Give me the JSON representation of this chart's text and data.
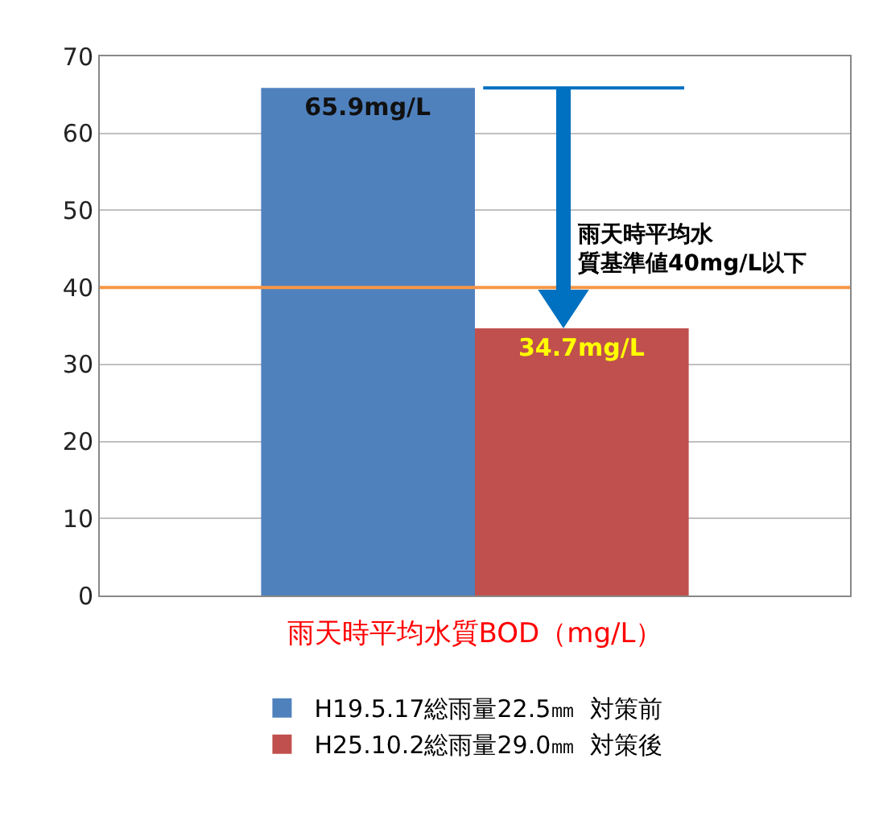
{
  "chart_data": {
    "type": "bar",
    "categories": [
      null
    ],
    "series": [
      {
        "name": "H19.5.17総雨量22.5㎜  対策前",
        "color": "#4f81bd",
        "values": [
          65.9
        ],
        "value_labels": [
          "65.9mg/L"
        ]
      },
      {
        "name": "H25.10.2総雨量29.0㎜  対策後",
        "color": "#c0504d",
        "values": [
          34.7
        ],
        "value_labels": [
          "34.7mg/L"
        ]
      }
    ],
    "xlabel": "雨天時平均水質BOD（mg/L）",
    "ylim": [
      0,
      70
    ],
    "yticks": [
      0,
      10,
      20,
      30,
      40,
      50,
      60,
      70
    ],
    "grid": "y",
    "legend": "bottom",
    "ref_lines": [
      {
        "axis": "y",
        "value": 40,
        "label": "雨天時平均水質基準値40mg/L以下",
        "color": "#f79646"
      }
    ]
  }
}
